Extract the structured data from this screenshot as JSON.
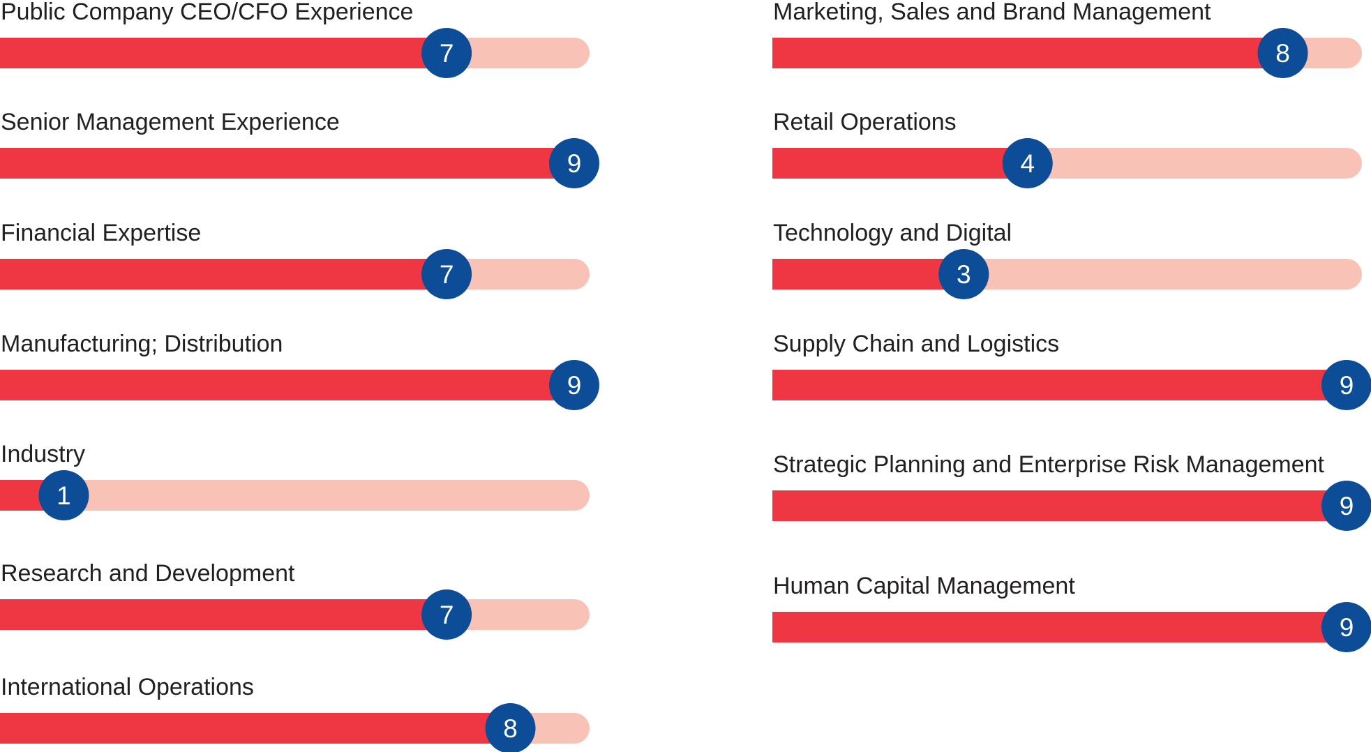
{
  "chart_data": {
    "type": "bar",
    "scale": {
      "min": 0,
      "max": 9
    },
    "colors": {
      "filled": "#ee3742",
      "track": "#f8c3b6",
      "marker": "#0d4c97",
      "marker_text": "#ffffff",
      "label_text": "#231f20"
    },
    "columns": [
      {
        "name": "left",
        "items": [
          {
            "label": "Public Company CEO/CFO Experience",
            "value": 7
          },
          {
            "label": "Senior Management Experience",
            "value": 9
          },
          {
            "label": "Financial Expertise",
            "value": 7
          },
          {
            "label": "Manufacturing; Distribution",
            "value": 9
          },
          {
            "label": "Industry",
            "value": 1
          },
          {
            "label": "Research and Development",
            "value": 7
          },
          {
            "label": "International Operations",
            "value": 8
          }
        ]
      },
      {
        "name": "right",
        "items": [
          {
            "label": "Marketing, Sales and Brand Management",
            "value": 8
          },
          {
            "label": "Retail Operations",
            "value": 4
          },
          {
            "label": "Technology and Digital",
            "value": 3
          },
          {
            "label": "Supply Chain and Logistics",
            "value": 9
          },
          {
            "label": "Strategic Planning and Enterprise Risk Management",
            "value": 9
          },
          {
            "label": "Human Capital Management",
            "value": 9
          }
        ]
      }
    ]
  }
}
